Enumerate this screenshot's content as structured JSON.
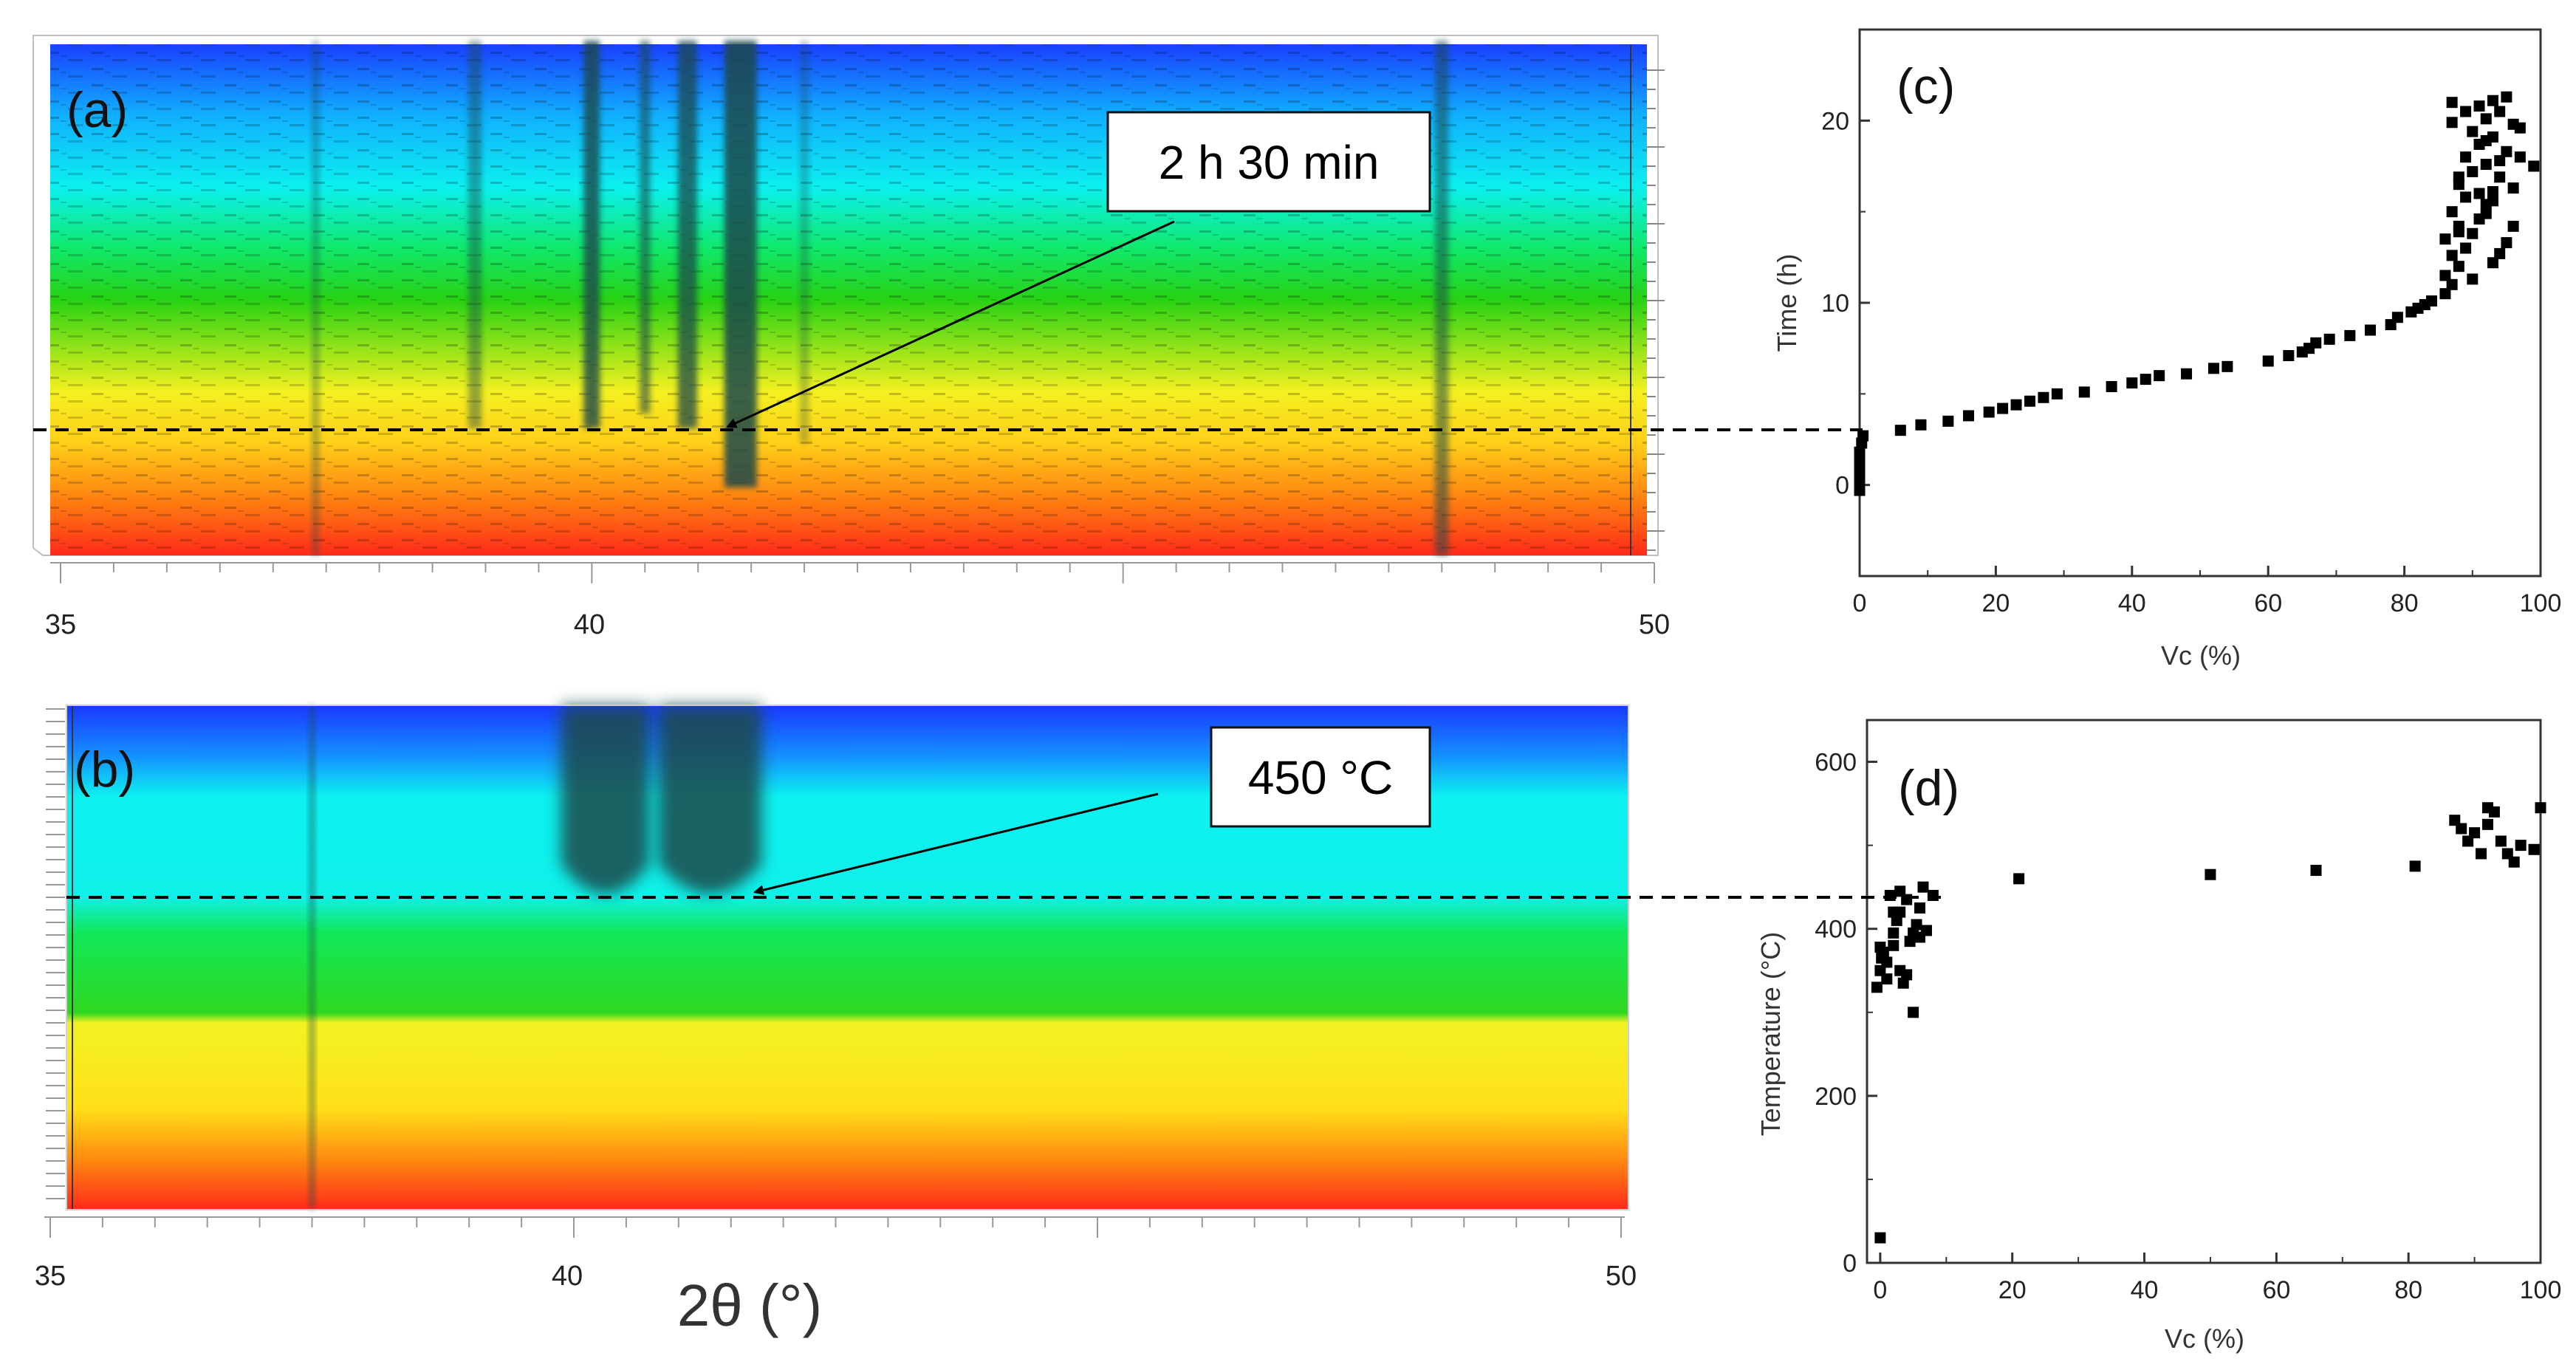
{
  "colors": {
    "heatmap_stops": [
      "#ff2a1a",
      "#ff7a10",
      "#ffcf18",
      "#f4f020",
      "#28d214",
      "#10e86a",
      "#0cf0f0",
      "#10b0ff",
      "#1a40ff"
    ],
    "peak_shadow": "#1e4a4c",
    "marker": "#000000",
    "dash": "#000000"
  },
  "chart_data": [
    {
      "id": "a",
      "type": "heatmap",
      "panel_label": "(a)",
      "annotation": "2 h 30 min",
      "x_ticks": [
        "35",
        "40",
        "50"
      ],
      "xlim": [
        35,
        50
      ],
      "peaks_2theta": [
        37.4,
        38.9,
        40.0,
        40.5,
        40.9,
        41.4,
        42.0,
        48.0
      ],
      "marker_line_fraction": 0.75
    },
    {
      "id": "b",
      "type": "heatmap",
      "panel_label": "(b)",
      "annotation": "450 °C",
      "x_ticks": [
        "35",
        "40",
        "50"
      ],
      "xlim": [
        35,
        50
      ],
      "xlabel": "2θ (°)",
      "peaks_2theta": [
        37.5,
        40.3,
        41.3
      ],
      "marker_line_fraction": 0.38
    },
    {
      "id": "c",
      "type": "scatter",
      "panel_label": "(c)",
      "xlabel": "Vc (%)",
      "ylabel": "Time (h)",
      "xlim": [
        0,
        100
      ],
      "ylim": [
        -5,
        25
      ],
      "x_ticks": [
        "0",
        "20",
        "40",
        "60",
        "80",
        "100"
      ],
      "y_ticks": [
        "0",
        "10",
        "20"
      ],
      "reference_y": 3,
      "points": [
        [
          0,
          -0.3
        ],
        [
          0,
          0.3
        ],
        [
          0,
          0.8
        ],
        [
          0,
          1.3
        ],
        [
          0,
          1.8
        ],
        [
          0.3,
          2.3
        ],
        [
          0.5,
          2.7
        ],
        [
          6,
          3.0
        ],
        [
          9,
          3.3
        ],
        [
          13,
          3.5
        ],
        [
          16,
          3.8
        ],
        [
          19,
          4.0
        ],
        [
          21,
          4.2
        ],
        [
          23,
          4.4
        ],
        [
          25,
          4.6
        ],
        [
          27,
          4.8
        ],
        [
          29,
          5.0
        ],
        [
          33,
          5.1
        ],
        [
          37,
          5.4
        ],
        [
          40,
          5.6
        ],
        [
          42,
          5.8
        ],
        [
          44,
          6.0
        ],
        [
          48,
          6.1
        ],
        [
          52,
          6.4
        ],
        [
          54,
          6.5
        ],
        [
          60,
          6.8
        ],
        [
          63,
          7.1
        ],
        [
          65,
          7.3
        ],
        [
          66,
          7.5
        ],
        [
          67,
          7.8
        ],
        [
          69,
          8.0
        ],
        [
          72,
          8.2
        ],
        [
          75,
          8.5
        ],
        [
          78,
          8.8
        ],
        [
          79,
          9.2
        ],
        [
          81,
          9.5
        ],
        [
          82,
          9.7
        ],
        [
          83,
          9.9
        ],
        [
          84,
          10.1
        ],
        [
          86,
          10.5
        ],
        [
          87,
          11.0
        ],
        [
          86,
          11.5
        ],
        [
          88,
          12.0
        ],
        [
          87,
          12.6
        ],
        [
          89,
          13.0
        ],
        [
          86,
          13.5
        ],
        [
          90,
          13.8
        ],
        [
          88,
          14.2
        ],
        [
          91,
          14.6
        ],
        [
          87,
          15.0
        ],
        [
          92,
          15.4
        ],
        [
          89,
          15.8
        ],
        [
          93,
          16.1
        ],
        [
          88,
          16.5
        ],
        [
          94,
          16.9
        ],
        [
          90,
          17.2
        ],
        [
          92,
          17.6
        ],
        [
          89,
          18.0
        ],
        [
          95,
          18.3
        ],
        [
          91,
          18.7
        ],
        [
          93,
          19.1
        ],
        [
          90,
          19.4
        ],
        [
          96,
          19.8
        ],
        [
          92,
          20.1
        ],
        [
          94,
          20.5
        ],
        [
          91,
          20.8
        ],
        [
          93,
          21.1
        ],
        [
          87,
          21.0
        ],
        [
          97,
          19.6
        ],
        [
          94,
          17.8
        ],
        [
          96,
          16.3
        ],
        [
          92,
          14.9
        ],
        [
          95,
          13.3
        ],
        [
          93,
          12.2
        ],
        [
          90,
          11.3
        ],
        [
          88,
          16.9
        ],
        [
          92,
          18.9
        ],
        [
          95,
          21.3
        ],
        [
          87,
          19.9
        ],
        [
          99,
          17.5
        ],
        [
          96,
          14.2
        ],
        [
          89,
          20.5
        ],
        [
          93,
          15.6
        ],
        [
          91,
          16.0
        ],
        [
          94,
          12.7
        ],
        [
          97,
          18.0
        ],
        [
          88,
          13.9
        ]
      ]
    },
    {
      "id": "d",
      "type": "scatter",
      "panel_label": "(d)",
      "xlabel": "Vc (%)",
      "ylabel": "Temperature (°C)",
      "xlim": [
        -2,
        100
      ],
      "ylim": [
        0,
        650
      ],
      "x_ticks": [
        "0",
        "20",
        "40",
        "60",
        "80",
        "100"
      ],
      "y_ticks": [
        "0",
        "200",
        "400",
        "600"
      ],
      "reference_y": 440,
      "points": [
        [
          0,
          30
        ],
        [
          -0.5,
          330
        ],
        [
          0,
          350
        ],
        [
          0.2,
          365
        ],
        [
          0,
          378
        ],
        [
          0.5,
          372
        ],
        [
          1,
          340
        ],
        [
          2,
          380
        ],
        [
          2,
          395
        ],
        [
          2.5,
          410
        ],
        [
          3,
          420
        ],
        [
          1.5,
          440
        ],
        [
          3,
          445
        ],
        [
          3.5,
          335
        ],
        [
          4,
          345
        ],
        [
          4.5,
          385
        ],
        [
          5,
          395
        ],
        [
          5.5,
          405
        ],
        [
          6,
          390
        ],
        [
          6,
          425
        ],
        [
          6.5,
          450
        ],
        [
          5,
          300
        ],
        [
          4,
          435
        ],
        [
          7,
          398
        ],
        [
          8,
          440
        ],
        [
          2,
          420
        ],
        [
          1,
          360
        ],
        [
          3,
          350
        ],
        [
          21,
          460
        ],
        [
          50,
          465
        ],
        [
          66,
          470
        ],
        [
          81,
          475
        ],
        [
          87,
          530
        ],
        [
          88,
          520
        ],
        [
          89,
          505
        ],
        [
          90,
          515
        ],
        [
          91,
          490
        ],
        [
          92,
          545
        ],
        [
          92,
          525
        ],
        [
          93,
          540
        ],
        [
          94,
          505
        ],
        [
          95,
          490
        ],
        [
          96,
          480
        ],
        [
          97,
          500
        ],
        [
          99,
          495
        ],
        [
          100,
          545
        ]
      ]
    }
  ]
}
